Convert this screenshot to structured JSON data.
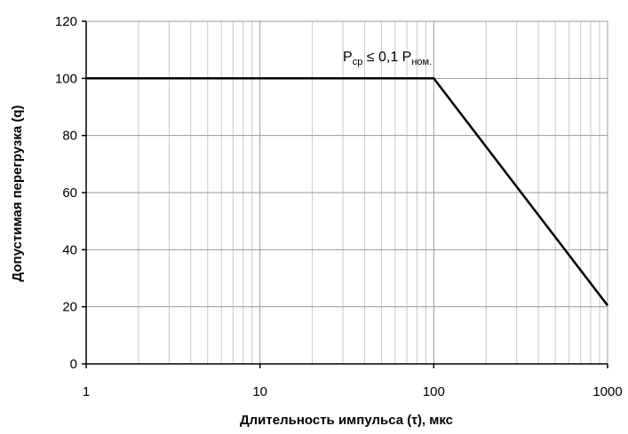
{
  "chart_data": {
    "type": "line",
    "x_scale": "log",
    "xlim": [
      1,
      1000
    ],
    "ylim": [
      0,
      120
    ],
    "grid": true,
    "xlabel": "Длительность импульса (τ), мкс",
    "ylabel": "Допустимая перегрузка (q)",
    "x_ticks": [
      "1",
      "10",
      "100",
      "1000"
    ],
    "y_ticks": [
      "0",
      "20",
      "40",
      "60",
      "80",
      "100",
      "120"
    ],
    "series": [
      {
        "x": [
          1,
          100,
          1000
        ],
        "y": [
          100,
          100,
          20.5
        ],
        "color": "#000000"
      }
    ],
    "annotation": {
      "p1": "P",
      "p1_sub": "ср",
      "relation": " ≤ 0,1 P",
      "p2_sub": "ном.",
      "x": 30,
      "y": 106
    }
  }
}
